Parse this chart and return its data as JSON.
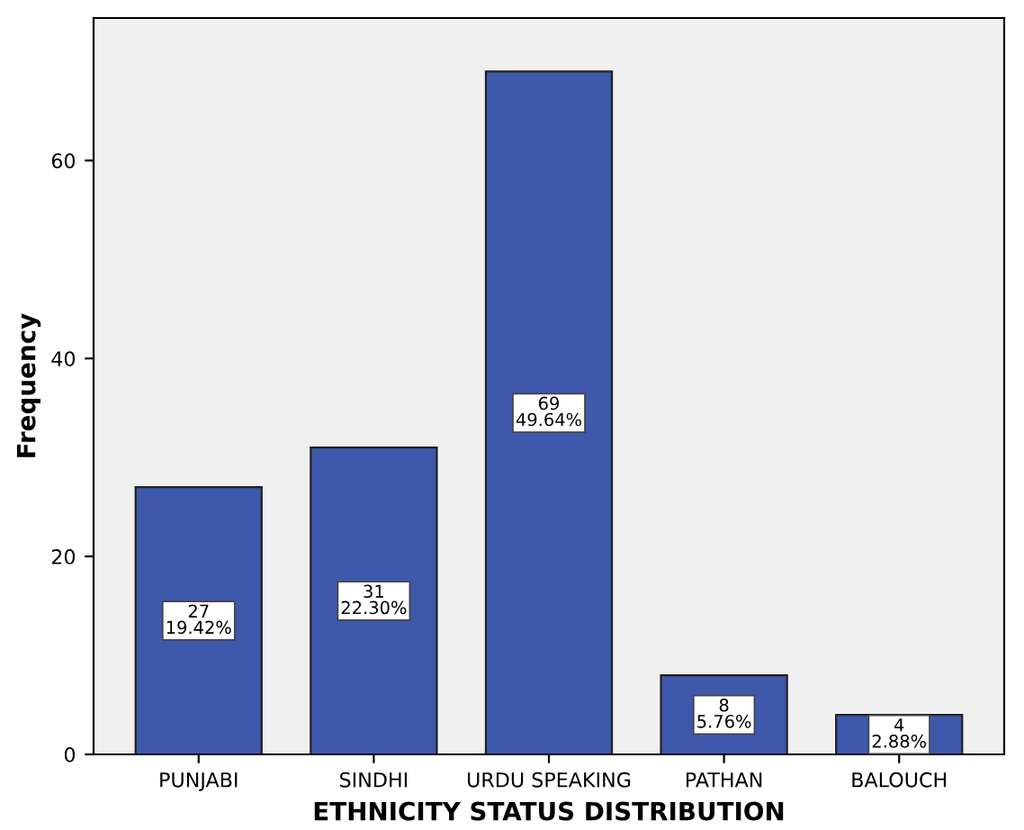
{
  "chart_data": {
    "type": "bar",
    "xlabel": "ETHNICITY STATUS DISTRIBUTION",
    "ylabel": "Frequency",
    "categories": [
      "PUNJABI",
      "SINDHI",
      "URDU SPEAKING",
      "PATHAN",
      "BALOUCH"
    ],
    "values": [
      27,
      31,
      69,
      8,
      4
    ],
    "value_labels": [
      "27\n19.42%",
      "31\n22.30%",
      "69\n49.64%",
      "8\n5.76%",
      "4\n2.88%"
    ],
    "color": "#3e58ac",
    "ylim": [
      0,
      74.4
    ],
    "yticks": [
      0,
      20,
      40,
      60
    ],
    "grid": false,
    "legend": false
  }
}
